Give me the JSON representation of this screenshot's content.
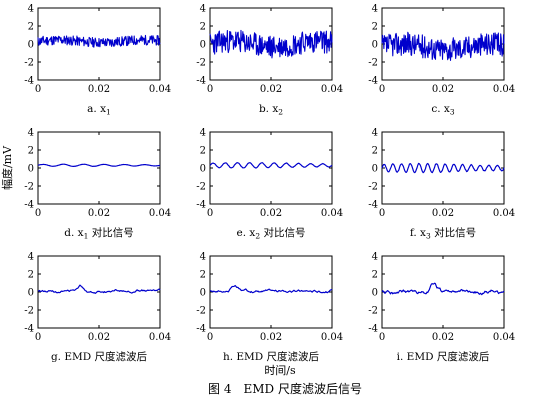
{
  "figure": {
    "caption": "图 4　EMD 尺度滤波后信号",
    "ylabel": "幅度/mV",
    "xlabel": "时间/s"
  },
  "chart_data": [
    {
      "type": "line",
      "panel_label": "a. x1",
      "label_main": "a. x",
      "label_sub": "1",
      "label_suffix": "",
      "xlim": [
        0,
        0.04
      ],
      "ylim": [
        -4,
        4
      ],
      "xticks": [
        "0",
        "0.02",
        "0.04"
      ],
      "yticks": [
        "-4",
        "-2",
        "0",
        "2",
        "4"
      ],
      "series": [
        {
          "color": "#0000cc",
          "kind": "noise",
          "baseline": 0.3,
          "amplitude": 0.55,
          "seed": 11
        }
      ]
    },
    {
      "type": "line",
      "panel_label": "b. x2",
      "label_main": "b. x",
      "label_sub": "2",
      "label_suffix": "",
      "xlim": [
        0,
        0.04
      ],
      "ylim": [
        -4,
        4
      ],
      "xticks": [
        "0",
        "0.02",
        "0.04"
      ],
      "yticks": [
        "-4",
        "-2",
        "0",
        "2",
        "4"
      ],
      "series": [
        {
          "color": "#0000cc",
          "kind": "noise",
          "baseline": 0.0,
          "amplitude": 1.3,
          "seed": 23
        }
      ]
    },
    {
      "type": "line",
      "panel_label": "c. x3",
      "label_main": "c. x",
      "label_sub": "3",
      "label_suffix": "",
      "xlim": [
        0,
        0.04
      ],
      "ylim": [
        -4,
        4
      ],
      "xticks": [
        "0",
        "0.02",
        "0.04"
      ],
      "yticks": [
        "-4",
        "-2",
        "0",
        "2",
        "4"
      ],
      "series": [
        {
          "color": "#0000cc",
          "kind": "noise",
          "baseline": -0.3,
          "amplitude": 1.3,
          "seed": 37
        }
      ]
    },
    {
      "type": "line",
      "panel_label": "d. x1 对比信号",
      "label_main": "d. x",
      "label_sub": "1",
      "label_suffix": " 对比信号",
      "xlim": [
        0,
        0.04
      ],
      "ylim": [
        -4,
        4
      ],
      "xticks": [
        "0",
        "0.02",
        "0.04"
      ],
      "yticks": [
        "-4",
        "-2",
        "0",
        "2",
        "4"
      ],
      "series": [
        {
          "color": "#0000cc",
          "kind": "smooth",
          "baseline": 0.3,
          "amplitude": 0.12,
          "cycles": 6,
          "seed": 5
        }
      ]
    },
    {
      "type": "line",
      "panel_label": "e. x2 对比信号",
      "label_main": "e. x",
      "label_sub": "2",
      "label_suffix": " 对比信号",
      "xlim": [
        0,
        0.04
      ],
      "ylim": [
        -4,
        4
      ],
      "xticks": [
        "0",
        "0.02",
        "0.04"
      ],
      "yticks": [
        "-4",
        "-2",
        "0",
        "2",
        "4"
      ],
      "series": [
        {
          "color": "#0000cc",
          "kind": "smooth",
          "baseline": 0.3,
          "amplitude": 0.3,
          "cycles": 10,
          "seed": 7
        }
      ]
    },
    {
      "type": "line",
      "panel_label": "f. x3 对比信号",
      "label_main": "f. x",
      "label_sub": "3",
      "label_suffix": " 对比信号",
      "xlim": [
        0,
        0.04
      ],
      "ylim": [
        -4,
        4
      ],
      "xticks": [
        "0",
        "0.02",
        "0.04"
      ],
      "yticks": [
        "-4",
        "-2",
        "0",
        "2",
        "4"
      ],
      "series": [
        {
          "color": "#0000cc",
          "kind": "smooth",
          "baseline": 0.0,
          "amplitude": 0.5,
          "cycles": 14,
          "seed": 9
        }
      ]
    },
    {
      "type": "line",
      "panel_label": "g. EMD 尺度滤波后",
      "label_main": "g. EMD 尺度滤波后",
      "label_sub": "",
      "label_suffix": "",
      "xlim": [
        0,
        0.04
      ],
      "ylim": [
        -4,
        4
      ],
      "xticks": [
        "0",
        "0.02",
        "0.04"
      ],
      "yticks": [
        "-4",
        "-2",
        "0",
        "2",
        "4"
      ],
      "series": [
        {
          "color": "#0000cc",
          "kind": "filtered",
          "baseline": 0.1,
          "amplitude": 0.35,
          "bump_at": 0.014,
          "bump_height": 0.6,
          "seed": 13
        }
      ]
    },
    {
      "type": "line",
      "panel_label": "h. EMD 尺度滤波后",
      "label_main": "h. EMD 尺度滤波后",
      "label_sub": "",
      "label_suffix": "",
      "xlim": [
        0,
        0.04
      ],
      "ylim": [
        -4,
        4
      ],
      "xticks": [
        "0",
        "0.02",
        "0.04"
      ],
      "yticks": [
        "-4",
        "-2",
        "0",
        "2",
        "4"
      ],
      "series": [
        {
          "color": "#0000cc",
          "kind": "filtered",
          "baseline": 0.1,
          "amplitude": 0.35,
          "bump_at": 0.008,
          "bump_height": 0.5,
          "seed": 17
        }
      ]
    },
    {
      "type": "line",
      "panel_label": "i. EMD 尺度滤波后",
      "label_main": "i. EMD 尺度滤波后",
      "label_sub": "",
      "label_suffix": "",
      "xlim": [
        0,
        0.04
      ],
      "ylim": [
        -4,
        4
      ],
      "xticks": [
        "0",
        "0.02",
        "0.04"
      ],
      "yticks": [
        "-4",
        "-2",
        "0",
        "2",
        "4"
      ],
      "series": [
        {
          "color": "#0000cc",
          "kind": "filtered",
          "baseline": 0.0,
          "amplitude": 0.55,
          "bump_at": 0.017,
          "bump_height": 1.0,
          "seed": 19
        }
      ]
    }
  ]
}
